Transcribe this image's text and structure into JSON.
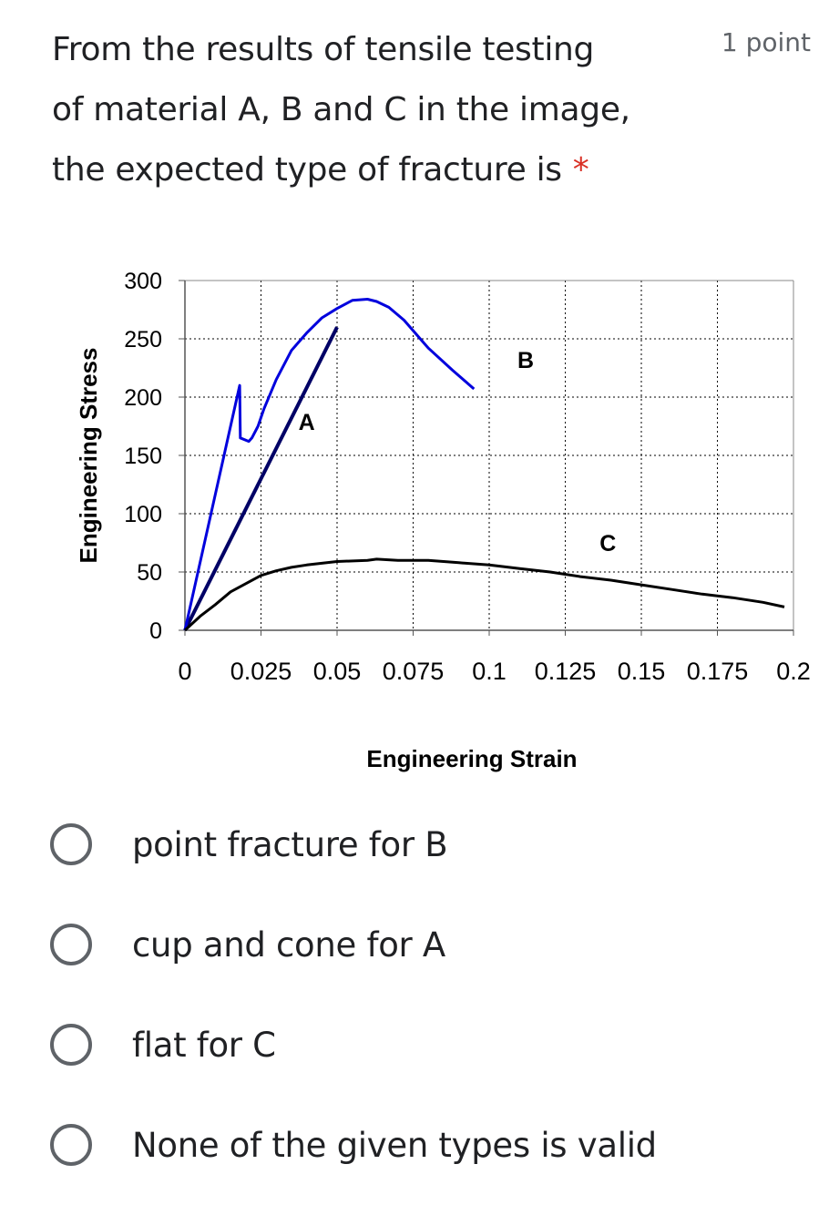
{
  "question": {
    "lines": [
      "From the results of tensile testing",
      "of material A, B and C in the image,",
      "the expected type of fracture is"
    ],
    "required_marker": "*",
    "points": "1 point"
  },
  "chart_data": {
    "type": "line",
    "title": "",
    "xlabel": "Engineering  Strain",
    "ylabel": "Engineering Stress",
    "xlim": [
      0,
      0.2
    ],
    "ylim": [
      0,
      300
    ],
    "x_ticks": [
      "0",
      "0.025",
      "0.05",
      "0.075",
      "0.1",
      "0.125",
      "0.15",
      "0.175",
      "0.2"
    ],
    "y_ticks": [
      "0",
      "50",
      "100",
      "150",
      "200",
      "250",
      "300"
    ],
    "grid": true,
    "series": [
      {
        "name": "A",
        "color": "#000066",
        "x": [
          0,
          0.05
        ],
        "y": [
          0,
          260
        ]
      },
      {
        "name": "B",
        "color": "#0000dd",
        "x": [
          0,
          0.018,
          0.0182,
          0.021,
          0.022,
          0.024,
          0.026,
          0.03,
          0.035,
          0.04,
          0.045,
          0.05,
          0.055,
          0.06,
          0.063,
          0.067,
          0.072,
          0.08,
          0.088,
          0.095
        ],
        "y": [
          0,
          210,
          165,
          162,
          165,
          175,
          190,
          215,
          240,
          255,
          268,
          276,
          283,
          284,
          282,
          277,
          266,
          242,
          223,
          207
        ]
      },
      {
        "name": "C",
        "color": "#000000",
        "x": [
          0,
          0.005,
          0.01,
          0.015,
          0.02,
          0.025,
          0.03,
          0.035,
          0.04,
          0.05,
          0.06,
          0.063,
          0.07,
          0.08,
          0.09,
          0.1,
          0.11,
          0.12,
          0.13,
          0.14,
          0.15,
          0.16,
          0.17,
          0.18,
          0.19,
          0.197
        ],
        "y": [
          0,
          12,
          22,
          33,
          40,
          47,
          51,
          54,
          56,
          59,
          60,
          61,
          60,
          60,
          58,
          56,
          53,
          50,
          46,
          43,
          39,
          35,
          31,
          28,
          24,
          20
        ]
      }
    ],
    "labels": [
      {
        "text": "A",
        "x": 0.04,
        "y": 172
      },
      {
        "text": "B",
        "x": 0.112,
        "y": 225
      },
      {
        "text": "C",
        "x": 0.139,
        "y": 68
      }
    ]
  },
  "options": [
    {
      "label": "point fracture for B"
    },
    {
      "label": "cup and cone for A"
    },
    {
      "label": "flat for C"
    },
    {
      "label": "None of the given types is valid"
    }
  ]
}
